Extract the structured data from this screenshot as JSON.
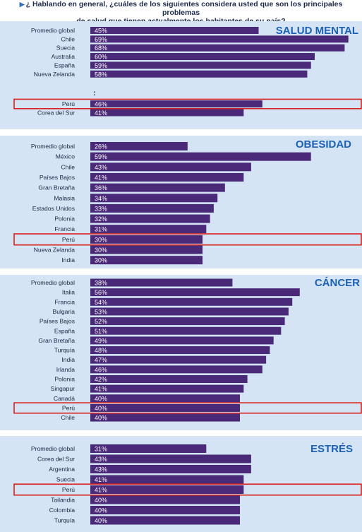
{
  "question": {
    "line1": "¿ Hablando en general, ¿cuáles de los siguientes considera usted que son los principales problemas",
    "line2": "de salud que tienen actualmente los habitantes de su país?"
  },
  "colors": {
    "panel_bg": "#d4e4f5",
    "bar": "#4a2a78",
    "label_text": "#1c2540",
    "bar_text": "#ffffff",
    "title_text": "#1c61b6",
    "highlight": "#d9211b",
    "separator": "#ffffff"
  },
  "chart_data": [
    {
      "type": "bar",
      "title": "SALUD MENTAL",
      "categories": [
        "Promedio global",
        "Chile",
        "Suecia",
        "Australia",
        "España",
        "Nueva Zelanda",
        "Perú",
        "Corea del Sur"
      ],
      "values": [
        45,
        69,
        68,
        60,
        59,
        58,
        46,
        41
      ],
      "value_labels": [
        "45%",
        "69%",
        "68%",
        "60%",
        "59%",
        "58%",
        "46%",
        "41%"
      ],
      "highlight": "Perú",
      "ellipsis": ":"
    },
    {
      "type": "bar",
      "title": "OBESIDAD",
      "categories": [
        "Promedio global",
        "México",
        "Chile",
        "Países Bajos",
        "Gran Bretaña",
        "Malasia",
        "Estados Unidos",
        "Polonia",
        "Francia",
        "Perú",
        "Nueva Zelanda",
        "India"
      ],
      "values": [
        26,
        59,
        43,
        41,
        36,
        34,
        33,
        32,
        31,
        30,
        30,
        30
      ],
      "value_labels": [
        "26%",
        "59%",
        "43%",
        "41%",
        "36%",
        "34%",
        "33%",
        "32%",
        "31%",
        "30%",
        "30%",
        "30%"
      ],
      "highlight": "Perú"
    },
    {
      "type": "bar",
      "title": "CÁNCER",
      "categories": [
        "Promedio global",
        "Italia",
        "Francia",
        "Bulgaria",
        "Países Bajos",
        "España",
        "Gran Bretaña",
        "Turquía",
        "India",
        "Irlanda",
        "Polonia",
        "Singapur",
        "Canadá",
        "Perú",
        "Chile"
      ],
      "values": [
        38,
        56,
        54,
        53,
        52,
        51,
        49,
        48,
        47,
        46,
        42,
        41,
        40,
        40,
        40
      ],
      "value_labels": [
        "38%",
        "56%",
        "54%",
        "53%",
        "52%",
        "51%",
        "49%",
        "48%",
        "47%",
        "46%",
        "42%",
        "41%",
        "40%",
        "40%",
        "40%"
      ],
      "highlight": "Perú"
    },
    {
      "type": "bar",
      "title": "ESTRÉS",
      "categories": [
        "Promedio global",
        "Corea del Sur",
        "Argentina",
        "Suecia",
        "Perú",
        "Tailandia",
        "Colombia",
        "Turquía"
      ],
      "values": [
        31,
        43,
        43,
        41,
        41,
        40,
        40,
        40
      ],
      "value_labels": [
        "31%",
        "43%",
        "43%",
        "41%",
        "41%",
        "40%",
        "40%",
        "40%"
      ],
      "highlight": "Perú"
    }
  ]
}
